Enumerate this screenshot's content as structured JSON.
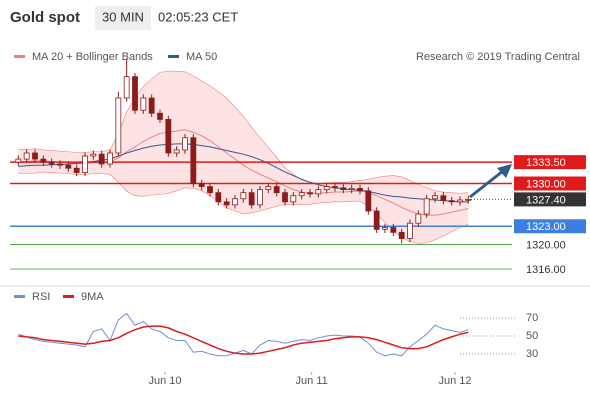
{
  "chart_data": {
    "type": "candlestick",
    "title": "Gold spot",
    "interval": "30 MIN",
    "time": "02:05:23 CET",
    "source": "Research © 2019 Trading Central",
    "candle_color": "#8b1c1c",
    "xlim": [
      -1,
      59
    ],
    "ylim": [
      1314.2,
      1353.5
    ],
    "xticks": [
      {
        "value": 17.6,
        "label": "Jun 10"
      },
      {
        "value": 35.2,
        "label": "Jun 11"
      },
      {
        "value": 52.4,
        "label": "Jun 12"
      }
    ],
    "open": [
      1333.5,
      1334.0,
      1335.0,
      1334.0,
      1333.5,
      1333.2,
      1333.0,
      1332.5,
      1331.8,
      1334.5,
      1334.8,
      1333.2,
      1335.0,
      1344.0,
      1347.5,
      1342.0,
      1344.0,
      1341.5,
      1340.5,
      1335.0,
      1335.5,
      1337.5,
      1330.0,
      1329.5,
      1328.5,
      1327.0,
      1326.5,
      1327.5,
      1328.5,
      1326.5,
      1329.0,
      1329.5,
      1328.5,
      1327.0,
      1328.0,
      1328.5,
      1328.3,
      1329.0,
      1329.5,
      1329.3,
      1329.0,
      1329.2,
      1328.8,
      1325.5,
      1322.5,
      1322.8,
      1322.0,
      1321.0,
      1323.5,
      1325.0,
      1327.5,
      1328.0,
      1327.2,
      1327.0,
      1327.3
    ],
    "high": [
      1334.6,
      1335.6,
      1335.6,
      1334.6,
      1334.1,
      1333.8,
      1333.6,
      1333.1,
      1335.1,
      1335.4,
      1335.4,
      1335.6,
      1345.0,
      1350.5,
      1348.1,
      1344.6,
      1344.6,
      1342.1,
      1341.1,
      1336.1,
      1338.1,
      1338.1,
      1330.6,
      1330.1,
      1329.1,
      1327.6,
      1328.1,
      1329.1,
      1329.1,
      1329.6,
      1330.1,
      1330.1,
      1329.1,
      1328.6,
      1329.1,
      1329.1,
      1329.6,
      1330.1,
      1330.1,
      1329.9,
      1329.8,
      1329.8,
      1329.4,
      1326.1,
      1323.4,
      1323.4,
      1322.6,
      1324.1,
      1325.6,
      1328.1,
      1328.6,
      1328.6,
      1327.8,
      1327.9,
      1328.0
    ],
    "low": [
      1332.9,
      1333.4,
      1333.4,
      1332.9,
      1332.6,
      1332.4,
      1331.9,
      1331.2,
      1331.2,
      1333.9,
      1332.6,
      1332.6,
      1334.4,
      1343.4,
      1341.4,
      1341.4,
      1340.9,
      1339.9,
      1334.4,
      1334.4,
      1334.9,
      1329.4,
      1328.9,
      1327.9,
      1326.4,
      1325.9,
      1325.9,
      1326.9,
      1325.9,
      1325.9,
      1328.4,
      1327.9,
      1326.4,
      1326.4,
      1327.4,
      1327.7,
      1327.7,
      1328.4,
      1328.7,
      1328.4,
      1328.4,
      1328.2,
      1324.9,
      1321.9,
      1321.9,
      1321.4,
      1320.2,
      1320.4,
      1322.9,
      1324.4,
      1326.9,
      1326.6,
      1326.4,
      1326.4,
      1326.7
    ],
    "close": [
      1334.0,
      1335.0,
      1334.0,
      1333.5,
      1333.2,
      1333.0,
      1332.5,
      1331.8,
      1334.5,
      1334.8,
      1333.2,
      1335.0,
      1344.0,
      1347.5,
      1342.0,
      1344.0,
      1341.5,
      1340.5,
      1335.0,
      1335.5,
      1337.5,
      1330.0,
      1329.5,
      1328.5,
      1327.0,
      1326.5,
      1327.5,
      1328.5,
      1326.5,
      1329.0,
      1329.5,
      1328.5,
      1327.0,
      1328.0,
      1328.5,
      1328.3,
      1329.0,
      1329.5,
      1329.3,
      1329.0,
      1329.2,
      1328.8,
      1325.5,
      1322.5,
      1322.8,
      1322.0,
      1321.0,
      1323.5,
      1325.0,
      1327.5,
      1328.0,
      1327.2,
      1327.0,
      1327.3,
      1327.4
    ],
    "bollinger": {
      "name": "MA 20 + Bollinger Bands",
      "color": "#f08080",
      "fill": "#fde3e3",
      "middle": [
        1333.6,
        1333.6,
        1333.7,
        1333.7,
        1333.6,
        1333.5,
        1333.4,
        1333.3,
        1333.3,
        1333.4,
        1333.4,
        1333.5,
        1334.2,
        1335.2,
        1336.0,
        1336.9,
        1337.6,
        1338.2,
        1338.4,
        1338.6,
        1338.8,
        1338.4,
        1337.8,
        1337.0,
        1336.0,
        1335.0,
        1334.0,
        1333.0,
        1332.2,
        1331.5,
        1330.9,
        1330.3,
        1329.6,
        1329.0,
        1328.6,
        1328.4,
        1328.4,
        1328.5,
        1328.6,
        1328.6,
        1328.7,
        1328.8,
        1328.5,
        1328.0,
        1327.4,
        1326.8,
        1326.1,
        1325.5,
        1325.0,
        1324.8,
        1324.8,
        1325.0,
        1325.3,
        1325.6,
        1325.9
      ],
      "upper": [
        1335.6,
        1335.6,
        1335.7,
        1335.5,
        1335.4,
        1335.3,
        1335.2,
        1335.1,
        1335.1,
        1335.2,
        1335.2,
        1335.5,
        1338.2,
        1341.7,
        1344.0,
        1345.9,
        1347.1,
        1348.2,
        1348.4,
        1348.4,
        1348.3,
        1347.6,
        1346.8,
        1346.0,
        1345.0,
        1344.0,
        1342.5,
        1341.0,
        1339.2,
        1337.5,
        1335.9,
        1334.3,
        1332.6,
        1331.5,
        1330.6,
        1330.2,
        1330.0,
        1330.1,
        1330.2,
        1330.2,
        1330.3,
        1330.5,
        1330.7,
        1331.0,
        1331.2,
        1331.3,
        1331.1,
        1330.5,
        1329.8,
        1329.3,
        1328.8,
        1328.6,
        1328.5,
        1328.4,
        1328.5
      ],
      "lower": [
        1331.6,
        1331.6,
        1331.7,
        1331.9,
        1331.8,
        1331.7,
        1331.6,
        1331.5,
        1331.5,
        1331.6,
        1331.6,
        1331.5,
        1330.2,
        1328.7,
        1328.0,
        1327.9,
        1328.1,
        1328.2,
        1328.4,
        1328.8,
        1329.3,
        1329.2,
        1328.8,
        1328.0,
        1327.0,
        1326.0,
        1325.5,
        1325.0,
        1325.2,
        1325.5,
        1325.9,
        1326.3,
        1326.6,
        1326.5,
        1326.6,
        1326.6,
        1326.8,
        1326.9,
        1327.0,
        1327.0,
        1327.1,
        1327.1,
        1326.3,
        1325.0,
        1323.6,
        1322.3,
        1321.1,
        1320.5,
        1320.2,
        1320.3,
        1320.8,
        1321.4,
        1322.1,
        1322.8,
        1323.3
      ]
    },
    "ma50": {
      "name": "MA 50",
      "color": "#2f5b8f",
      "values": [
        1332.8,
        1332.9,
        1333.0,
        1333.0,
        1333.1,
        1333.1,
        1333.2,
        1333.3,
        1333.4,
        1333.6,
        1333.8,
        1334.0,
        1334.5,
        1335.0,
        1335.4,
        1335.8,
        1336.1,
        1336.3,
        1336.4,
        1336.5,
        1336.5,
        1336.4,
        1336.2,
        1336.0,
        1335.7,
        1335.4,
        1335.1,
        1334.8,
        1334.4,
        1333.9,
        1333.3,
        1332.6,
        1331.9,
        1331.3,
        1330.7,
        1330.2,
        1329.8,
        1329.5,
        1329.3,
        1329.1,
        1329.0,
        1328.9,
        1328.7,
        1328.4,
        1328.1,
        1327.9,
        1327.8,
        1327.6,
        1327.5,
        1327.4,
        1327.3,
        1327.2,
        1327.1,
        1327.0,
        1327.0
      ]
    },
    "levels": [
      {
        "value": 1333.5,
        "label": "1333.50",
        "color": "#e01b1b",
        "style": "box"
      },
      {
        "value": 1330.0,
        "label": "1330.00",
        "color": "#e01b1b",
        "style": "box"
      },
      {
        "value": 1323.0,
        "label": "1323.00",
        "color": "#3d7fe0",
        "style": "box"
      },
      {
        "value": 1320.0,
        "label": "1320.00",
        "color": "#3a9a3a",
        "style": "text"
      },
      {
        "value": 1316.0,
        "label": "1316.00",
        "color": "#3a9a3a",
        "style": "text"
      }
    ],
    "last": {
      "value": 1327.4,
      "label": "1327.40",
      "color": "#333333"
    },
    "rsi": {
      "ylim": [
        10,
        90
      ],
      "yticks": [
        70,
        50,
        30
      ],
      "series": [
        {
          "name": "RSI",
          "color": "#6f8fd6",
          "values": [
            52,
            49,
            46,
            44,
            43,
            42,
            41,
            40,
            38,
            55,
            58,
            45,
            68,
            75,
            62,
            66,
            58,
            55,
            48,
            45,
            45,
            32,
            33,
            30,
            28,
            28,
            31,
            34,
            30,
            40,
            45,
            44,
            42,
            44,
            46,
            45,
            48,
            50,
            51,
            50,
            50,
            49,
            42,
            32,
            28,
            30,
            28,
            38,
            45,
            52,
            62,
            58,
            56,
            54,
            57
          ]
        },
        {
          "name": "9MA",
          "color": "#e01b1b",
          "values": [
            50,
            49,
            48,
            46,
            45,
            44,
            43,
            42,
            41,
            42,
            44,
            45,
            48,
            53,
            57,
            60,
            61,
            61,
            59,
            55,
            52,
            48,
            44,
            40,
            36,
            33,
            31,
            30,
            30,
            31,
            33,
            35,
            37,
            40,
            42,
            43,
            44,
            45,
            47,
            48,
            49,
            49,
            48,
            46,
            43,
            40,
            37,
            36,
            36,
            38,
            42,
            46,
            49,
            52,
            54
          ]
        }
      ]
    }
  }
}
